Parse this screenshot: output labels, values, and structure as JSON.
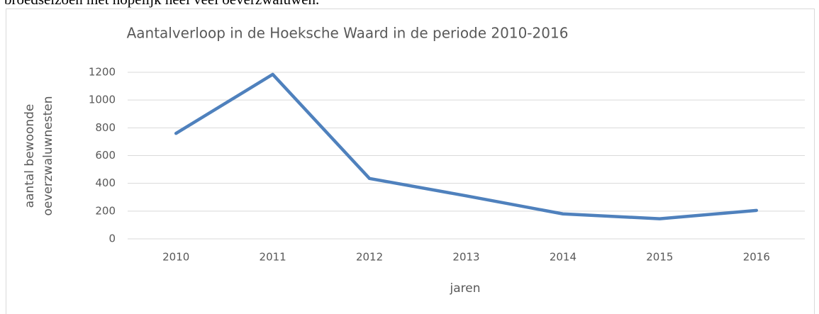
{
  "document_text": "broedseizoen met hopelijk heel veel oeverzwaluwen.",
  "chart_data": {
    "type": "line",
    "title": "Aantalverloop in de Hoeksche Waard in de periode 2010-2016",
    "ylabel": [
      "aantal bewoonde",
      "oeverzwaluwnesten"
    ],
    "xlabel": "jaren",
    "categories": [
      "2010",
      "2011",
      "2012",
      "2013",
      "2014",
      "2015",
      "2016"
    ],
    "series": [
      {
        "color": "#4f81bd",
        "values": [
          760,
          1185,
          435,
          310,
          180,
          145,
          205
        ]
      }
    ],
    "ylim": [
      0,
      1200
    ],
    "yticks": [
      0,
      200,
      400,
      600,
      800,
      1000,
      1200
    ],
    "grid": true
  }
}
